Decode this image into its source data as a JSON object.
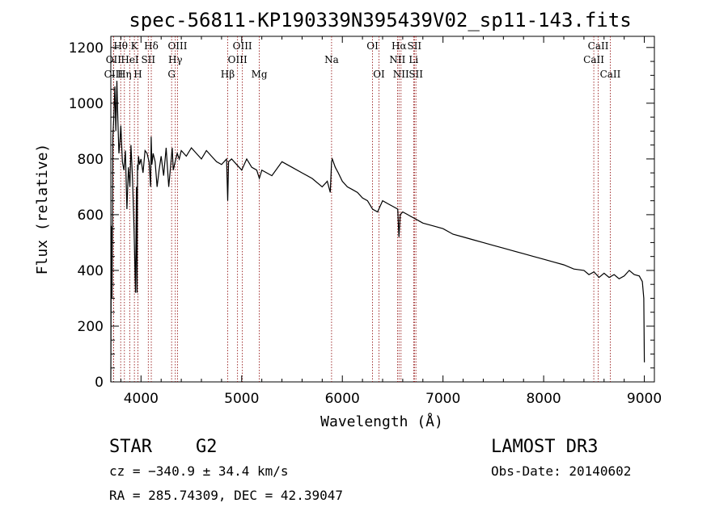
{
  "chart_data": {
    "type": "line",
    "title": "spec-56811-KP190339N395439V02_sp11-143.fits",
    "xlabel": "Wavelength (Å)",
    "ylabel": "Flux (relative)",
    "xlim": [
      3700,
      9100
    ],
    "ylim": [
      0,
      1240
    ],
    "xticks": [
      4000,
      5000,
      6000,
      7000,
      8000,
      9000
    ],
    "yticks": [
      0,
      200,
      400,
      600,
      800,
      1000,
      1200
    ],
    "series": [
      {
        "name": "Flux",
        "x": [
          3700,
          3705,
          3712,
          3720,
          3730,
          3740,
          3750,
          3760,
          3770,
          3780,
          3790,
          3800,
          3815,
          3830,
          3845,
          3860,
          3875,
          3890,
          3900,
          3915,
          3930,
          3945,
          3955,
          3960,
          3965,
          3970,
          3975,
          3985,
          4000,
          4020,
          4040,
          4060,
          4080,
          4095,
          4101,
          4108,
          4120,
          4140,
          4160,
          4180,
          4200,
          4225,
          4250,
          4275,
          4300,
          4310,
          4320,
          4340,
          4360,
          4380,
          4400,
          4450,
          4500,
          4550,
          4600,
          4650,
          4700,
          4750,
          4800,
          4850,
          4861,
          4870,
          4900,
          4950,
          5000,
          5050,
          5100,
          5150,
          5175,
          5200,
          5300,
          5400,
          5500,
          5600,
          5700,
          5800,
          5850,
          5880,
          5893,
          5900,
          5930,
          5960,
          6000,
          6050,
          6100,
          6150,
          6200,
          6250,
          6300,
          6350,
          6400,
          6450,
          6500,
          6550,
          6562,
          6575,
          6600,
          6650,
          6700,
          6750,
          6800,
          6900,
          7000,
          7100,
          7200,
          7300,
          7400,
          7500,
          7600,
          7700,
          7800,
          7900,
          8000,
          8100,
          8200,
          8300,
          8400,
          8450,
          8500,
          8550,
          8600,
          8650,
          8700,
          8750,
          8800,
          8850,
          8900,
          8950,
          8980,
          8995,
          9000
        ],
        "values": [
          0,
          560,
          300,
          880,
          950,
          1060,
          900,
          1080,
          940,
          820,
          860,
          920,
          790,
          760,
          830,
          620,
          770,
          700,
          850,
          730,
          560,
          320,
          700,
          320,
          780,
          760,
          810,
          780,
          800,
          750,
          830,
          820,
          790,
          700,
          880,
          780,
          820,
          790,
          700,
          760,
          810,
          740,
          840,
          700,
          800,
          840,
          760,
          790,
          820,
          800,
          830,
          810,
          840,
          820,
          800,
          830,
          810,
          790,
          780,
          800,
          650,
          790,
          800,
          780,
          760,
          800,
          770,
          760,
          730,
          760,
          740,
          790,
          770,
          750,
          730,
          700,
          720,
          680,
          790,
          800,
          770,
          750,
          720,
          700,
          690,
          680,
          660,
          650,
          620,
          610,
          650,
          640,
          630,
          620,
          520,
          600,
          610,
          600,
          590,
          580,
          570,
          560,
          550,
          530,
          520,
          510,
          500,
          490,
          480,
          470,
          460,
          450,
          440,
          430,
          420,
          405,
          400,
          385,
          395,
          375,
          390,
          375,
          385,
          370,
          380,
          400,
          385,
          380,
          360,
          300,
          70
        ]
      }
    ],
    "spectral_lines": [
      {
        "name": "CIII",
        "wave": 3727,
        "pos": "top",
        "row": 3
      },
      {
        "name": "OII",
        "wave": 3727,
        "pos": "top",
        "row": 2
      },
      {
        "name": "Hθ",
        "wave": 3798,
        "pos": "top",
        "row": 1
      },
      {
        "name": "Hη",
        "wave": 3835,
        "pos": "top",
        "row": 3
      },
      {
        "name": "HeI",
        "wave": 3889,
        "pos": "top",
        "row": 2
      },
      {
        "name": "K",
        "wave": 3934,
        "pos": "top",
        "row": 1
      },
      {
        "name": "H",
        "wave": 3969,
        "pos": "top",
        "row": 3
      },
      {
        "name": "SII",
        "wave": 4072,
        "pos": "top",
        "row": 2
      },
      {
        "name": "Hδ",
        "wave": 4102,
        "pos": "top",
        "row": 1
      },
      {
        "name": "G",
        "wave": 4304,
        "pos": "top",
        "row": 3
      },
      {
        "name": "Hγ",
        "wave": 4341,
        "pos": "top",
        "row": 2
      },
      {
        "name": "OIII",
        "wave": 4363,
        "pos": "top",
        "row": 1
      },
      {
        "name": "Hβ",
        "wave": 4861,
        "pos": "top",
        "row": 3
      },
      {
        "name": "OIII",
        "wave": 4959,
        "pos": "top",
        "row": 2
      },
      {
        "name": "OIII",
        "wave": 5007,
        "pos": "top",
        "row": 1
      },
      {
        "name": "Mg",
        "wave": 5175,
        "pos": "top",
        "row": 3
      },
      {
        "name": "Na",
        "wave": 5893,
        "pos": "top",
        "row": 2
      },
      {
        "name": "OI",
        "wave": 6300,
        "pos": "top",
        "row": 1
      },
      {
        "name": "OI",
        "wave": 6364,
        "pos": "top",
        "row": 3
      },
      {
        "name": "NII",
        "wave": 6548,
        "pos": "top",
        "row": 2
      },
      {
        "name": "Hα",
        "wave": 6563,
        "pos": "top",
        "row": 1
      },
      {
        "name": "NII",
        "wave": 6583,
        "pos": "top",
        "row": 3
      },
      {
        "name": "Li",
        "wave": 6708,
        "pos": "top",
        "row": 2
      },
      {
        "name": "SII",
        "wave": 6716,
        "pos": "top",
        "row": 1
      },
      {
        "name": "SII",
        "wave": 6731,
        "pos": "top",
        "row": 3
      },
      {
        "name": "CaII",
        "wave": 8498,
        "pos": "top",
        "row": 2
      },
      {
        "name": "CaII",
        "wave": 8542,
        "pos": "top",
        "row": 1
      },
      {
        "name": "CaII",
        "wave": 8662,
        "pos": "top",
        "row": 3
      }
    ]
  },
  "info": {
    "class": "STAR",
    "subclass": "G2",
    "survey": "LAMOST DR3",
    "cz": "cz = −340.9 ± 34.4 km/s",
    "obs_date": "Obs-Date: 20140602",
    "radec": "RA = 285.74309, DEC =  42.39047"
  },
  "colors": {
    "line_marker": "#8b0000",
    "spectrum": "#000000",
    "axes": "#000000"
  }
}
